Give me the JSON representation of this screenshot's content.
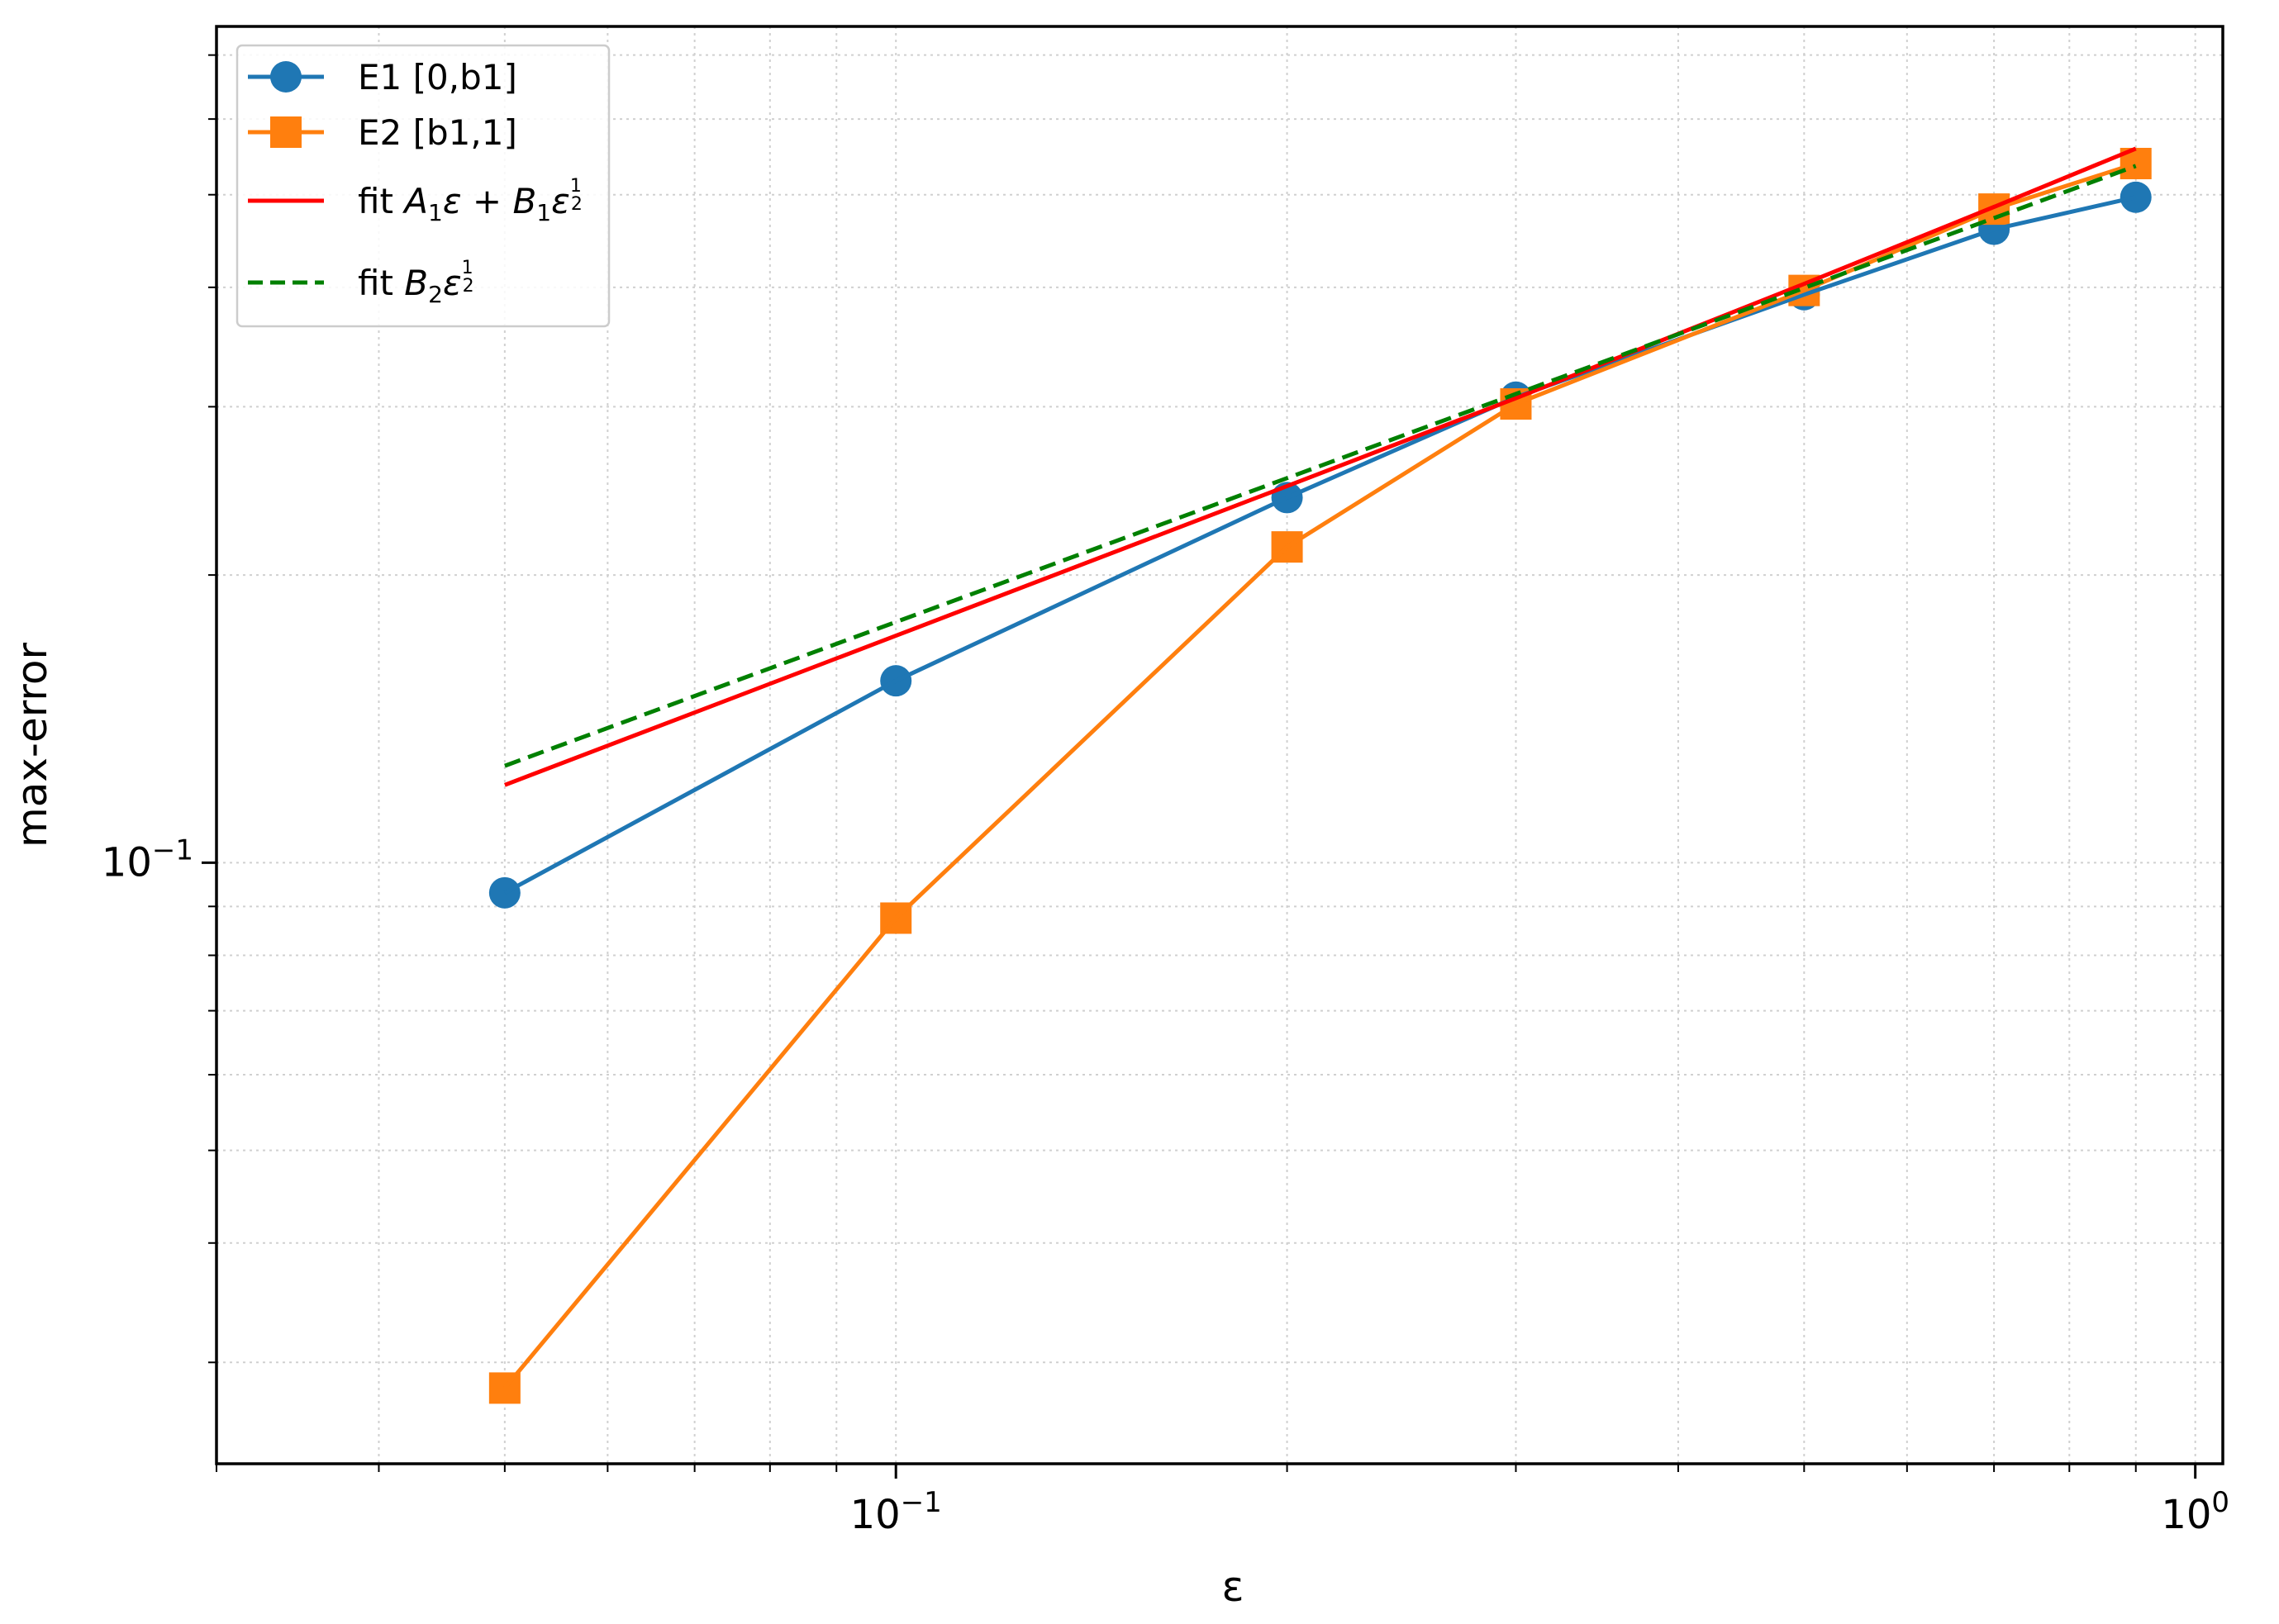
{
  "chart_data": {
    "type": "line",
    "title": "",
    "xlabel": "ε",
    "ylabel": "max-error",
    "xscale": "log",
    "yscale": "log",
    "xlim": [
      0.03,
      1.05
    ],
    "ylim": [
      0.0235,
      0.75
    ],
    "grid": true,
    "grid_style": "dotted, major and minor",
    "legend_position": "top-left",
    "x_ticks": [
      {
        "value": 0.1,
        "base": "10",
        "exp": "−1"
      },
      {
        "value": 1.0,
        "base": "10",
        "exp": "0"
      }
    ],
    "y_ticks": [
      {
        "value": 0.1,
        "base": "10",
        "exp": "−1"
      }
    ],
    "series": [
      {
        "name": "E1 [0,b1]",
        "color": "#1f77b4",
        "marker": "circle",
        "line_style": "solid",
        "x": [
          0.05,
          0.1,
          0.2,
          0.3,
          0.5,
          0.7,
          0.9
        ],
        "y": [
          0.093,
          0.155,
          0.241,
          0.307,
          0.393,
          0.46,
          0.497
        ]
      },
      {
        "name": "E2 [b1,1]",
        "color": "#ff7f0e",
        "marker": "square",
        "line_style": "solid",
        "x": [
          0.05,
          0.1,
          0.2,
          0.3,
          0.5,
          0.7,
          0.9
        ],
        "y": [
          0.0282,
          0.0875,
          0.214,
          0.302,
          0.397,
          0.483,
          0.539
        ]
      },
      {
        "name_prefix": "fit ",
        "name_math": "A1ε + B1ε^(1/2)",
        "color": "#ff0000",
        "marker": "none",
        "line_style": "solid",
        "x": [
          0.05,
          0.1,
          0.2,
          0.3,
          0.5,
          0.7,
          0.9
        ],
        "y": [
          0.1206,
          0.1728,
          0.2478,
          0.3062,
          0.4033,
          0.4855,
          0.5588
        ]
      },
      {
        "name_prefix": "fit ",
        "name_math": "B2ε^(1/2)",
        "color": "#008000",
        "marker": "none",
        "line_style": "dashed",
        "x": [
          0.05,
          0.1,
          0.2,
          0.3,
          0.5,
          0.7,
          0.9
        ],
        "y": [
          0.1263,
          0.1786,
          0.2526,
          0.3094,
          0.3994,
          0.4726,
          0.5359
        ]
      }
    ]
  }
}
